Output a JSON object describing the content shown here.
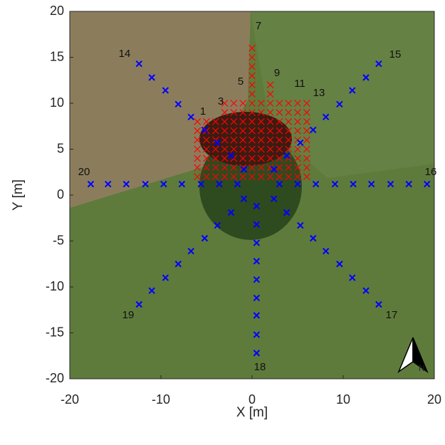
{
  "chart_data": {
    "type": "scatter",
    "xlabel": "X [m]",
    "ylabel": "Y [m]",
    "xlim": [
      -20,
      20
    ],
    "xticks": [
      -20,
      -10,
      0,
      10,
      20
    ],
    "ylim": [
      -20,
      20
    ],
    "yticks": [
      -20,
      -15,
      -10,
      -5,
      0,
      5,
      10,
      15,
      20
    ],
    "north_label": "N",
    "annotations": [
      "1",
      "3",
      "5",
      "7",
      "9",
      "11",
      "13",
      "14",
      "15",
      "16",
      "17",
      "18",
      "19",
      "20"
    ],
    "series": [
      {
        "color": "#ff0000",
        "marker": "x",
        "x": [
          -6,
          -5,
          -4,
          -3,
          -2,
          -1,
          0,
          1,
          2,
          3,
          4,
          5,
          6,
          -6,
          -5,
          -4,
          -3,
          -2,
          -1,
          0,
          1,
          2,
          3,
          4,
          5,
          6,
          -6,
          -5,
          -4,
          -3,
          -2,
          -1,
          0,
          1,
          2,
          3,
          4,
          5,
          6,
          -6,
          -5,
          -4,
          -3,
          -2,
          -1,
          0,
          1,
          2,
          3,
          4,
          5,
          6,
          -6,
          -5,
          -4,
          -3,
          -2,
          -1,
          0,
          1,
          2,
          3,
          4,
          5,
          6,
          -6,
          -5,
          -4,
          -3,
          -2,
          -1,
          0,
          1,
          2,
          3,
          4,
          5,
          6,
          -6,
          -5,
          -4,
          -3,
          -2,
          -1,
          0,
          1,
          2,
          3,
          4,
          5,
          6,
          -3,
          -2,
          -1,
          0,
          1,
          2,
          3,
          4,
          5,
          6,
          -3,
          -2,
          -1,
          0,
          1,
          2,
          3,
          4,
          5,
          6,
          0,
          0,
          0,
          0,
          0,
          0,
          2,
          2
        ],
        "y": [
          2,
          2,
          2,
          2,
          2,
          2,
          2,
          2,
          2,
          2,
          2,
          2,
          2,
          3,
          3,
          3,
          3,
          3,
          3,
          3,
          3,
          3,
          3,
          3,
          3,
          3,
          4,
          4,
          4,
          4,
          4,
          4,
          4,
          4,
          4,
          4,
          4,
          4,
          4,
          5,
          5,
          5,
          5,
          5,
          5,
          5,
          5,
          5,
          5,
          5,
          5,
          5,
          6,
          6,
          6,
          6,
          6,
          6,
          6,
          6,
          6,
          6,
          6,
          6,
          6,
          7,
          7,
          7,
          7,
          7,
          7,
          7,
          7,
          7,
          7,
          7,
          7,
          7,
          8,
          8,
          8,
          8,
          8,
          8,
          8,
          8,
          8,
          8,
          8,
          8,
          8,
          9,
          9,
          9,
          9,
          9,
          9,
          9,
          9,
          9,
          9,
          10,
          10,
          10,
          10,
          10,
          10,
          10,
          10,
          10,
          10,
          11,
          12,
          13,
          14,
          15,
          16,
          11,
          12
        ]
      },
      {
        "color": "#0000ff",
        "marker": "x",
        "x": [
          -17.7,
          -15.8,
          -13.8,
          -11.7,
          -9.7,
          -7.7,
          -5.6,
          -3.6,
          -1.6,
          3.0,
          5.0,
          7.0,
          9.1,
          11.1,
          13.1,
          15.2,
          17.2,
          19.2,
          0.5,
          0.5,
          0.5,
          0.5,
          0.5,
          0.5,
          0.5,
          0.5,
          0.5,
          -12.4,
          -11.0,
          -9.5,
          -8.1,
          -6.7,
          -5.2,
          -3.8,
          -2.3,
          -0.9,
          13.9,
          12.5,
          11.0,
          9.6,
          8.1,
          6.7,
          5.3,
          3.8,
          2.4,
          -12.4,
          -11.0,
          -9.5,
          -8.1,
          -6.7,
          -5.2,
          -3.8,
          -2.3,
          -0.9,
          13.9,
          12.5,
          11.0,
          9.6,
          8.1,
          6.7,
          5.3,
          3.8,
          2.4
        ],
        "y": [
          1.2,
          1.2,
          1.2,
          1.2,
          1.2,
          1.2,
          1.2,
          1.2,
          1.2,
          1.2,
          1.2,
          1.2,
          1.2,
          1.2,
          1.2,
          1.2,
          1.2,
          1.2,
          -1.2,
          -3.2,
          -5.2,
          -7.2,
          -9.2,
          -11.2,
          -13.1,
          -15.2,
          -17.2,
          14.3,
          12.8,
          11.4,
          9.9,
          8.5,
          7.1,
          5.7,
          4.3,
          2.8,
          14.3,
          12.8,
          11.4,
          9.9,
          8.5,
          7.1,
          5.7,
          4.3,
          2.8,
          -11.9,
          -10.4,
          -9.0,
          -7.5,
          -6.1,
          -4.7,
          -3.3,
          -1.9,
          -0.4,
          -11.9,
          -10.4,
          -9.0,
          -7.5,
          -6.1,
          -4.7,
          -3.3,
          -1.9,
          -0.4
        ]
      }
    ]
  }
}
